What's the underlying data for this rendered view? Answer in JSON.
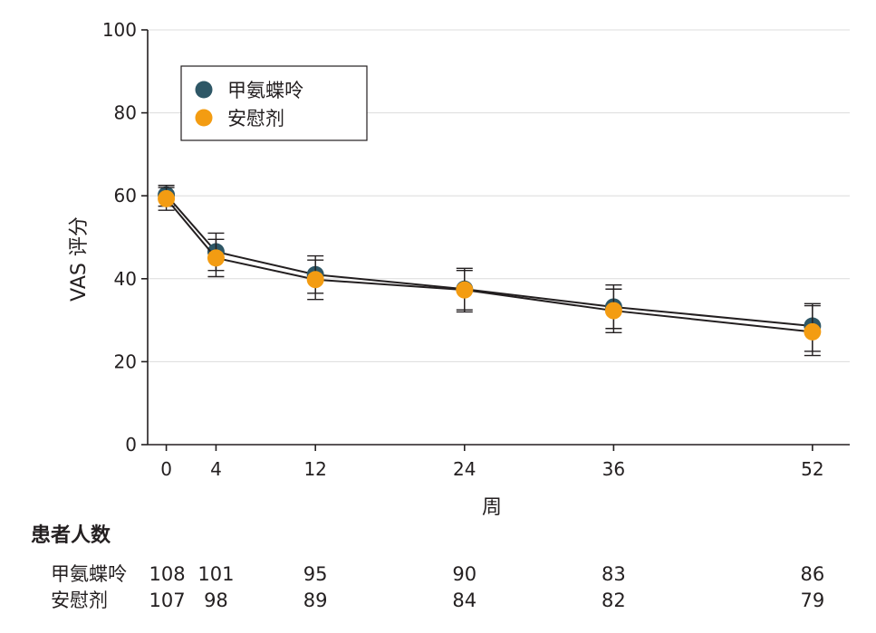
{
  "chart_data": {
    "type": "line",
    "xlabel": "周",
    "ylabel": "VAS 评分",
    "x": [
      0,
      4,
      12,
      24,
      36,
      52
    ],
    "xticks": [
      "0",
      "4",
      "12",
      "24",
      "36",
      "52"
    ],
    "xlim": [
      -1.5,
      55
    ],
    "ylim": [
      0,
      100
    ],
    "yticks": [
      "0",
      "20",
      "40",
      "60",
      "80",
      "100"
    ],
    "grid": "horizontal",
    "legend_position": "top-left",
    "series": [
      {
        "name": "甲氨蝶呤",
        "color": "#2e5766",
        "values": [
          60.2,
          46.5,
          41.0,
          37.5,
          33.2,
          28.6
        ],
        "error_low": [
          57.5,
          42.0,
          36.5,
          32.5,
          28.0,
          22.5
        ],
        "error_high": [
          62.5,
          51.0,
          45.5,
          42.5,
          38.5,
          34.0
        ]
      },
      {
        "name": "安慰剂",
        "color": "#f39c12",
        "values": [
          59.3,
          45.0,
          39.8,
          37.3,
          32.3,
          27.2
        ],
        "error_low": [
          56.5,
          40.5,
          35.0,
          32.0,
          27.0,
          21.5
        ],
        "error_high": [
          62.0,
          49.5,
          44.5,
          42.0,
          37.5,
          33.5
        ]
      }
    ],
    "risk_table": {
      "title": "患者人数",
      "rows": [
        {
          "label": "甲氨蝶呤",
          "values": [
            "108",
            "101",
            "95",
            "90",
            "83",
            "86"
          ]
        },
        {
          "label": "安慰剂",
          "values": [
            "107",
            "98",
            "89",
            "84",
            "82",
            "79"
          ]
        }
      ]
    }
  }
}
